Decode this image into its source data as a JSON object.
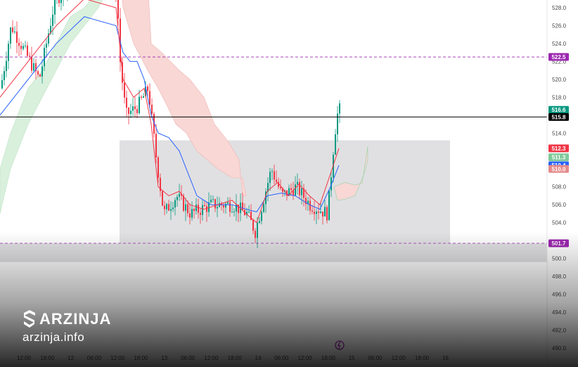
{
  "chart_data": {
    "type": "candlestick",
    "y_ticks": [
      528.0,
      526.0,
      524.0,
      522.0,
      520.0,
      518.0,
      514.0,
      508.0,
      506.0,
      504.0,
      500.0,
      498.0,
      496.0,
      494.0,
      492.0,
      490.0
    ],
    "ylim": [
      489.5,
      528.8
    ],
    "x_ticks": [
      "12:00",
      "18:00",
      "12",
      "06:00",
      "12:00",
      "18:00",
      "13",
      "06:00",
      "12:00",
      "18:00",
      "14",
      "06:00",
      "12:00",
      "18:00",
      "15",
      "06:00",
      "12:00",
      "18:00",
      "16"
    ],
    "price_badges": [
      {
        "value": "522.5",
        "color": "#9c27b0"
      },
      {
        "value": "516.6",
        "color": "#089981"
      },
      {
        "value": "515.8",
        "color": "#000000"
      },
      {
        "value": "512.3",
        "color": "#f23645"
      },
      {
        "value": "511.3",
        "color": "#7fc99a"
      },
      {
        "value": "510.4",
        "color": "#2962ff"
      },
      {
        "value": "510.0",
        "color": "#e58a8a"
      },
      {
        "value": "501.7",
        "color": "#9c27b0"
      }
    ],
    "horizontal_lines": [
      {
        "value": 522.5,
        "style": "dashed",
        "color": "#9c27b0"
      },
      {
        "value": 515.8,
        "style": "solid",
        "color": "#000000"
      },
      {
        "value": 501.7,
        "style": "dashed",
        "color": "#9c27b0"
      }
    ],
    "zones": [
      {
        "top": 513.2,
        "bottom": 501.7,
        "color": "#e0e0e2"
      },
      {
        "top": 501.7,
        "bottom": 499.6,
        "color": "#e0e0e2"
      }
    ],
    "colors": {
      "up": "#089981",
      "down": "#f23645",
      "blue_line": "#2962ff",
      "red_line": "#f23645",
      "cloud_green": "#d9f0dd",
      "cloud_red": "#f8d7d5"
    }
  },
  "watermark": {
    "brand": "ARZINJA",
    "domain": "arzinja.info"
  }
}
